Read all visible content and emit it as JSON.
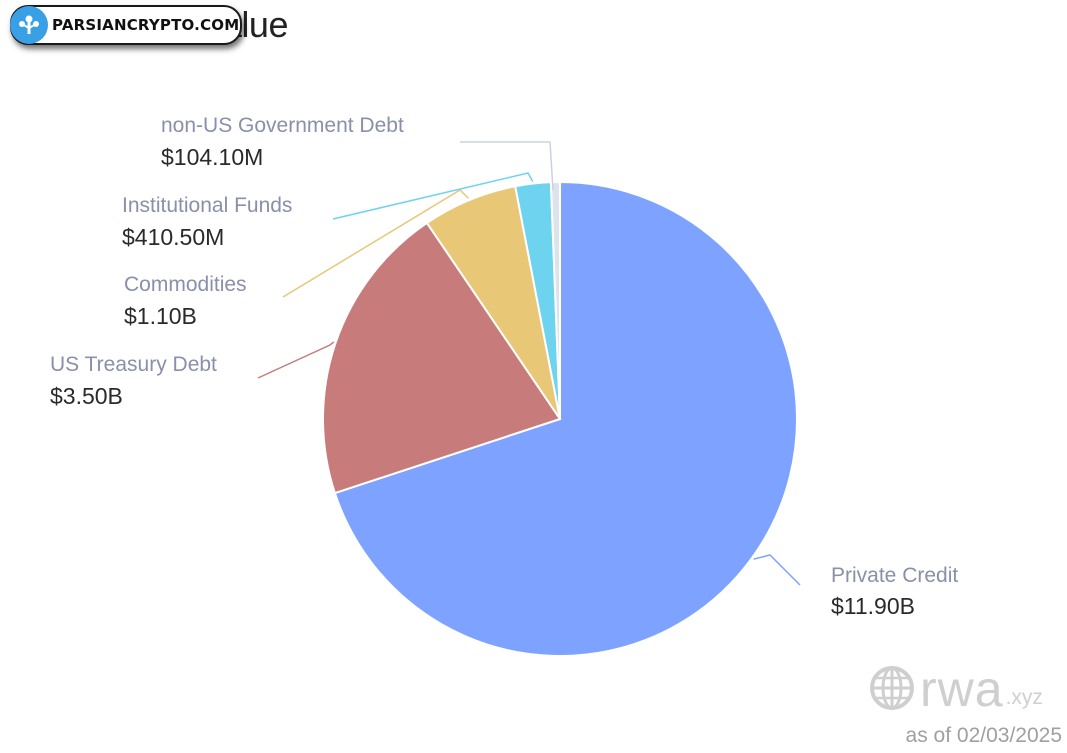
{
  "chart_title": "Total RWA Value",
  "watermark": {
    "text": "PARSIANCRYPTO.COM",
    "logo": "tree-logo-icon"
  },
  "brand": {
    "name": "rwa",
    "tld": ".xyz",
    "logo": "globe-icon"
  },
  "as_of": "as of 02/03/2025",
  "colors": {
    "private_credit": "#7ea2ff",
    "us_treasury_debt": "#c77b7b",
    "commodities": "#e8c777",
    "institutional_funds": "#6dd3ee",
    "non_us_government_debt": "#dde3ea"
  },
  "chart_data": {
    "type": "pie",
    "title": "Total RWA Value",
    "slices": [
      {
        "label": "Private Credit",
        "value": 11.9,
        "value_label": "$11.90B",
        "color": "#7ea2ff"
      },
      {
        "label": "US Treasury Debt",
        "value": 3.5,
        "value_label": "$3.50B",
        "color": "#c77b7b"
      },
      {
        "label": "Commodities",
        "value": 1.1,
        "value_label": "$1.10B",
        "color": "#e8c777"
      },
      {
        "label": "Institutional Funds",
        "value": 0.4105,
        "value_label": "$410.50M",
        "color": "#6dd3ee"
      },
      {
        "label": "non-US Government Debt",
        "value": 0.1041,
        "value_label": "$104.10M",
        "color": "#dde3ea"
      }
    ],
    "units": "USD billions"
  }
}
